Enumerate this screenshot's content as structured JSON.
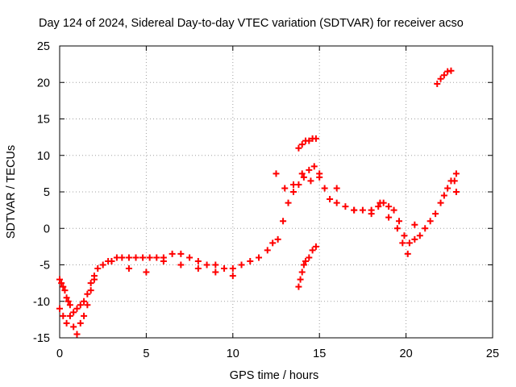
{
  "chart_data": {
    "type": "scatter",
    "title": "Day 124 of 2024, Sidereal Day-to-day VTEC variation (SDTVAR) for receiver acso",
    "xlabel": "GPS time / hours",
    "ylabel": "SDTVAR / TECUs",
    "xlim": [
      0,
      25
    ],
    "ylim": [
      -15,
      25
    ],
    "xticks": [
      0,
      5,
      10,
      15,
      20,
      25
    ],
    "yticks": [
      -15,
      -10,
      -5,
      0,
      5,
      10,
      15,
      20,
      25
    ],
    "grid": true,
    "marker": "+",
    "series": [
      {
        "name": "SDTVAR",
        "color": "#ff0000",
        "x": [
          0.0,
          0.1,
          0.2,
          0.3,
          0.4,
          0.5,
          0.6,
          0.8,
          1.0,
          1.2,
          1.4,
          1.6,
          1.8,
          2.0,
          2.2,
          2.5,
          2.8,
          3.0,
          3.3,
          3.6,
          4.0,
          4.4,
          4.8,
          5.2,
          5.6,
          6.0,
          6.5,
          7.0,
          7.5,
          8.0,
          8.5,
          9.0,
          9.5,
          10.0,
          10.5,
          11.0,
          11.5,
          12.0,
          12.3,
          12.6,
          12.9,
          13.2,
          13.5,
          13.8,
          14.1,
          14.4,
          14.7,
          15.0,
          15.3,
          15.6,
          16.0,
          16.5,
          17.0,
          17.5,
          18.0,
          18.4,
          18.7,
          19.0,
          19.3,
          19.6,
          19.9,
          20.2,
          20.5,
          20.8,
          21.1,
          21.4,
          21.7,
          22.0,
          22.2,
          22.4,
          22.6,
          22.8,
          0.0,
          0.2,
          0.4,
          0.6,
          0.8,
          1.0,
          1.2,
          1.4,
          1.6,
          1.8,
          2.0,
          3.0,
          4.0,
          5.0,
          6.0,
          7.0,
          8.0,
          9.0,
          10.0,
          12.5,
          13.0,
          13.5,
          14.0,
          14.5,
          15.0,
          16.0,
          17.0,
          18.0,
          18.5,
          19.0,
          19.5,
          19.8,
          20.1,
          20.5,
          13.8,
          13.9,
          14.0,
          14.1,
          14.2,
          14.4,
          14.6,
          14.8,
          13.8,
          14.0,
          14.2,
          14.4,
          14.6,
          14.8,
          21.8,
          22.0,
          22.2,
          22.4,
          22.6,
          22.9,
          22.9
        ],
        "y": [
          -7.0,
          -7.5,
          -8.0,
          -8.5,
          -9.5,
          -10.0,
          -10.5,
          -11.5,
          -11.0,
          -10.5,
          -10.0,
          -9.0,
          -7.5,
          -6.5,
          -5.5,
          -5.0,
          -4.5,
          -4.5,
          -4.0,
          -4.0,
          -4.0,
          -4.0,
          -4.0,
          -4.0,
          -4.0,
          -4.0,
          -3.5,
          -3.5,
          -4.0,
          -4.5,
          -5.0,
          -5.0,
          -5.5,
          -5.5,
          -5.0,
          -4.5,
          -4.0,
          -3.0,
          -2.0,
          -1.5,
          1.0,
          3.5,
          5.0,
          6.0,
          7.0,
          8.0,
          8.5,
          7.0,
          5.5,
          4.0,
          3.5,
          3.0,
          2.5,
          2.5,
          2.5,
          3.0,
          3.5,
          3.0,
          2.5,
          1.0,
          -1.0,
          -2.0,
          -1.5,
          -1.0,
          0.0,
          1.0,
          2.0,
          3.5,
          4.5,
          5.5,
          6.5,
          6.5,
          -11.0,
          -12.0,
          -13.0,
          -12.0,
          -13.5,
          -14.5,
          -13.0,
          -12.0,
          -10.5,
          -8.5,
          -7.0,
          -4.5,
          -5.5,
          -6.0,
          -4.5,
          -5.0,
          -5.5,
          -6.0,
          -6.5,
          7.5,
          5.5,
          6.0,
          7.5,
          6.5,
          7.5,
          5.5,
          2.5,
          2.0,
          3.5,
          1.5,
          0.0,
          -2.0,
          -3.5,
          0.5,
          -8.0,
          -7.0,
          -6.0,
          -5.0,
          -4.5,
          -4.0,
          -3.0,
          -2.5,
          11.0,
          11.5,
          12.0,
          12.0,
          12.3,
          12.3,
          19.8,
          20.5,
          21.0,
          21.5,
          21.6,
          5.0,
          7.5
        ]
      }
    ]
  }
}
